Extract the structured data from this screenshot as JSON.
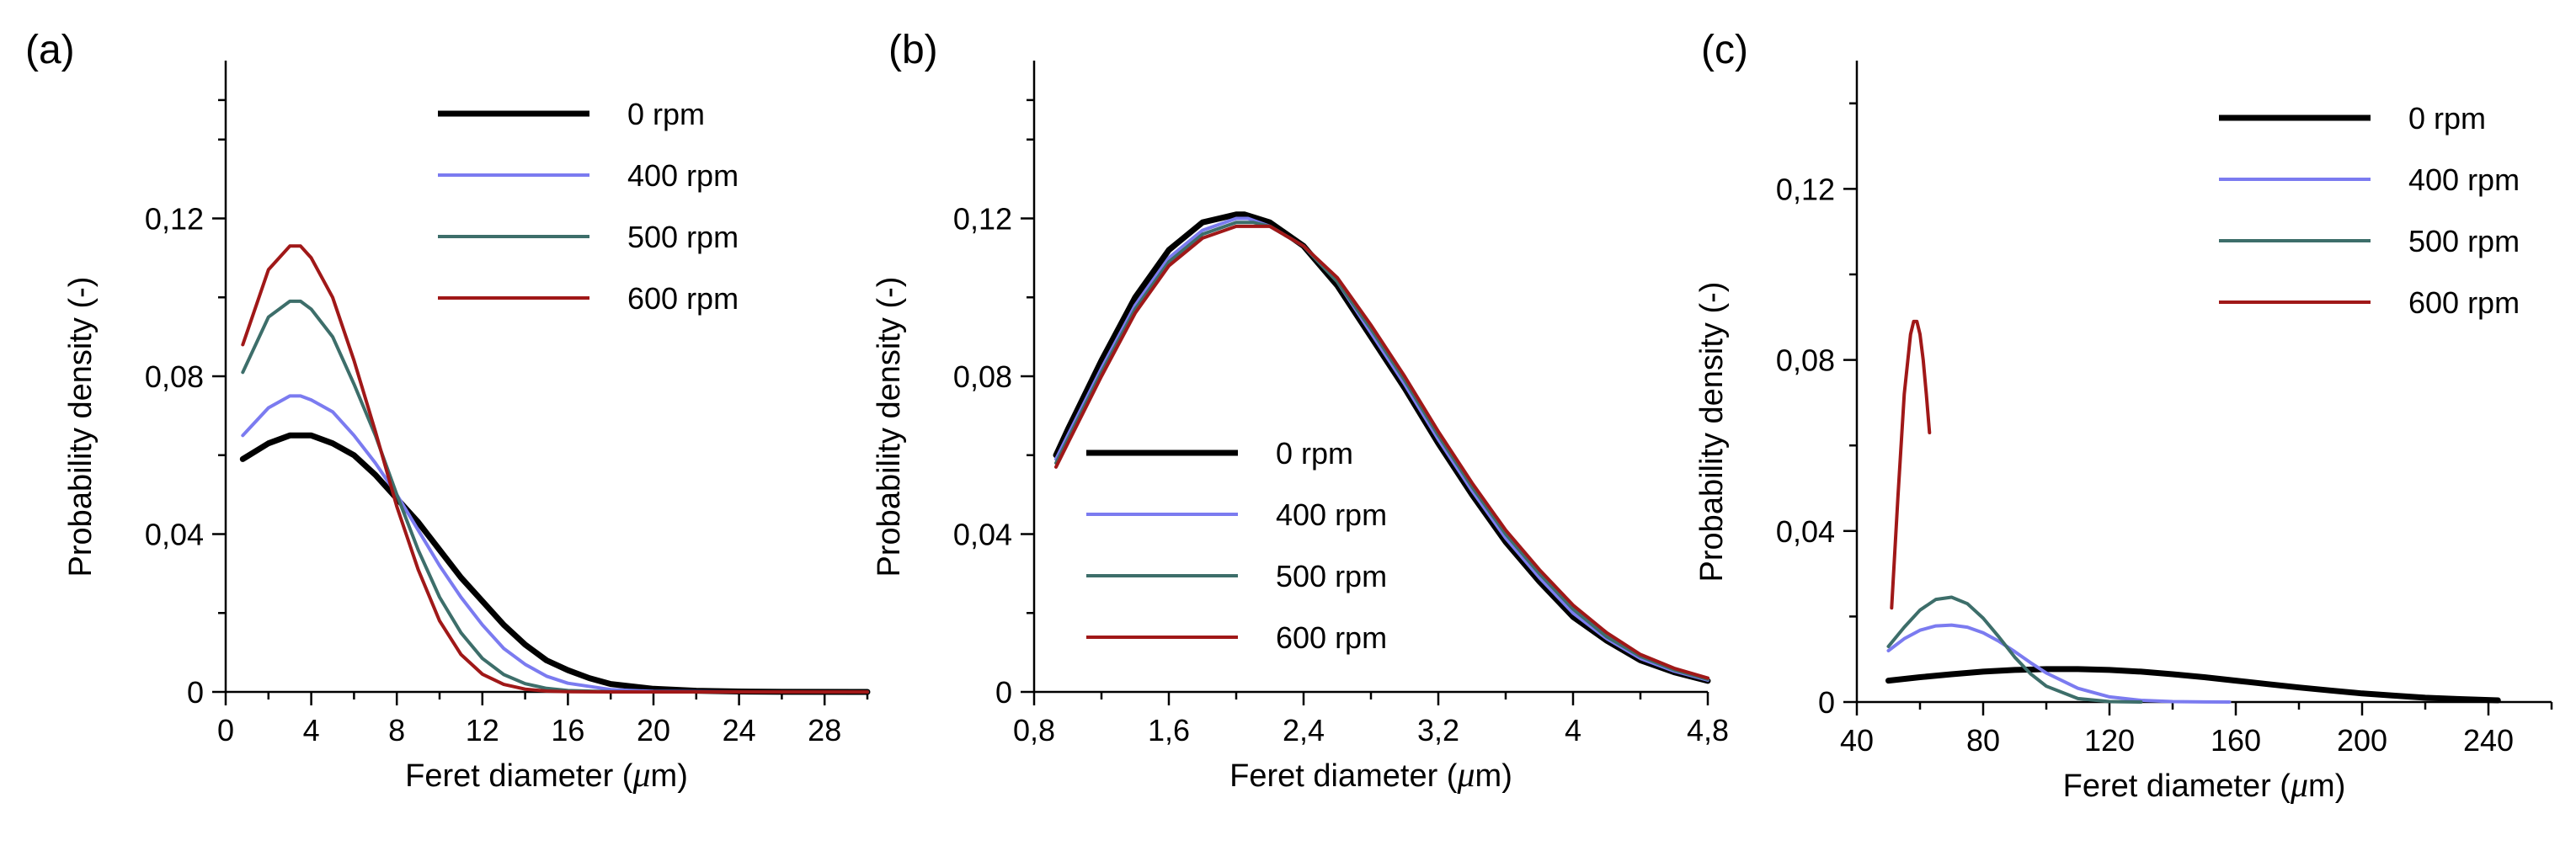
{
  "chart_data": [
    {
      "type": "line",
      "panel_label": "(a)",
      "xlabel_main": "Feret diameter (",
      "xlabel_mu": "μ",
      "xlabel_unit": "m)",
      "ylabel": "Probability density (-)",
      "xlim": [
        0,
        30
      ],
      "ylim": [
        0,
        0.16
      ],
      "xticks": [
        0,
        4,
        8,
        12,
        16,
        20,
        24,
        28
      ],
      "xtick_labels": [
        "0",
        "4",
        "8",
        "12",
        "16",
        "20",
        "24",
        "28"
      ],
      "yticks": [
        0,
        0.04,
        0.08,
        0.12
      ],
      "ytick_labels": [
        "0",
        "0,04",
        "0,08",
        "0,12"
      ],
      "legend_position": "top-right",
      "series": [
        {
          "name": "0 rpm",
          "color": "#000000",
          "width": 7,
          "x": [
            0.8,
            2,
            3,
            3.5,
            4,
            5,
            6,
            7,
            8,
            9,
            10,
            11,
            12,
            13,
            14,
            15,
            16,
            17,
            18,
            20,
            22,
            24,
            26,
            30
          ],
          "y": [
            0.059,
            0.063,
            0.065,
            0.065,
            0.065,
            0.063,
            0.06,
            0.055,
            0.049,
            0.043,
            0.036,
            0.029,
            0.023,
            0.017,
            0.012,
            0.008,
            0.0055,
            0.0035,
            0.002,
            0.0008,
            0.0003,
            0.0001,
            3e-05,
            0
          ]
        },
        {
          "name": "400 rpm",
          "color": "#7b7bf0",
          "width": 4,
          "x": [
            0.8,
            2,
            3,
            3.5,
            4,
            5,
            6,
            7,
            8,
            9,
            10,
            11,
            12,
            13,
            14,
            15,
            16,
            18,
            20,
            24,
            30
          ],
          "y": [
            0.065,
            0.072,
            0.075,
            0.075,
            0.074,
            0.071,
            0.065,
            0.058,
            0.05,
            0.041,
            0.032,
            0.024,
            0.017,
            0.011,
            0.007,
            0.004,
            0.0022,
            0.0006,
            0.00012,
            0,
            0
          ]
        },
        {
          "name": "500 rpm",
          "color": "#3d6e6a",
          "width": 4,
          "x": [
            0.8,
            2,
            3,
            3.5,
            4,
            5,
            6,
            7,
            8,
            9,
            10,
            11,
            12,
            13,
            14,
            15,
            16,
            18,
            20,
            30
          ],
          "y": [
            0.081,
            0.095,
            0.099,
            0.099,
            0.097,
            0.09,
            0.078,
            0.065,
            0.05,
            0.036,
            0.024,
            0.015,
            0.0085,
            0.0044,
            0.0021,
            0.0009,
            0.00035,
            4e-05,
            0,
            0
          ]
        },
        {
          "name": "600 rpm",
          "color": "#a01818",
          "width": 4,
          "x": [
            0.8,
            2,
            3,
            3.5,
            4,
            5,
            6,
            7,
            8,
            9,
            10,
            11,
            12,
            13,
            14,
            15,
            16,
            18,
            30
          ],
          "y": [
            0.088,
            0.107,
            0.113,
            0.113,
            0.11,
            0.1,
            0.084,
            0.066,
            0.047,
            0.031,
            0.018,
            0.0095,
            0.0045,
            0.0019,
            0.0007,
            0.00022,
            6e-05,
            0,
            0
          ]
        }
      ]
    },
    {
      "type": "line",
      "panel_label": "(b)",
      "xlabel_main": "Feret diameter (",
      "xlabel_mu": "μ",
      "xlabel_unit": "m)",
      "ylabel": "Probability density (-)",
      "xlim": [
        0.8,
        4.8
      ],
      "ylim": [
        0,
        0.16
      ],
      "xticks": [
        0.8,
        1.6,
        2.4,
        3.2,
        4,
        4.8
      ],
      "xtick_labels": [
        "0,8",
        "1,6",
        "2,4",
        "3,2",
        "4",
        "4,8"
      ],
      "yticks": [
        0,
        0.04,
        0.08,
        0.12
      ],
      "ytick_labels": [
        "0",
        "0,04",
        "0,08",
        "0,12"
      ],
      "legend_position": "bottom-left",
      "series": [
        {
          "name": "0 rpm",
          "color": "#000000",
          "width": 7,
          "x": [
            0.93,
            1.0,
            1.2,
            1.4,
            1.6,
            1.8,
            2.0,
            2.05,
            2.2,
            2.4,
            2.6,
            2.8,
            3.0,
            3.2,
            3.4,
            3.6,
            3.8,
            4.0,
            4.2,
            4.4,
            4.6,
            4.8
          ],
          "y": [
            0.06,
            0.0665,
            0.084,
            0.1,
            0.112,
            0.119,
            0.121,
            0.121,
            0.119,
            0.113,
            0.103,
            0.09,
            0.077,
            0.063,
            0.05,
            0.038,
            0.028,
            0.019,
            0.013,
            0.008,
            0.005,
            0.0028
          ]
        },
        {
          "name": "400 rpm",
          "color": "#7b7bf0",
          "width": 4,
          "x": [
            0.93,
            1.0,
            1.2,
            1.4,
            1.6,
            1.8,
            2.0,
            2.07,
            2.2,
            2.4,
            2.6,
            2.8,
            3.0,
            3.2,
            3.4,
            3.6,
            3.8,
            4.0,
            4.2,
            4.4,
            4.6,
            4.8
          ],
          "y": [
            0.059,
            0.065,
            0.082,
            0.098,
            0.11,
            0.117,
            0.12,
            0.12,
            0.118,
            0.113,
            0.104,
            0.091,
            0.078,
            0.064,
            0.051,
            0.039,
            0.029,
            0.02,
            0.0135,
            0.0085,
            0.0053,
            0.003
          ]
        },
        {
          "name": "500 rpm",
          "color": "#3d6e6a",
          "width": 4,
          "x": [
            0.93,
            1.0,
            1.2,
            1.4,
            1.6,
            1.8,
            2.0,
            2.1,
            2.2,
            2.4,
            2.6,
            2.8,
            3.0,
            3.2,
            3.4,
            3.6,
            3.8,
            4.0,
            4.2,
            4.4,
            4.6,
            4.8
          ],
          "y": [
            0.058,
            0.064,
            0.081,
            0.097,
            0.109,
            0.116,
            0.119,
            0.119,
            0.118,
            0.113,
            0.104,
            0.092,
            0.079,
            0.065,
            0.052,
            0.04,
            0.03,
            0.021,
            0.014,
            0.009,
            0.0056,
            0.0032
          ]
        },
        {
          "name": "600 rpm",
          "color": "#a01818",
          "width": 4,
          "x": [
            0.93,
            1.0,
            1.2,
            1.4,
            1.6,
            1.8,
            2.0,
            2.12,
            2.2,
            2.4,
            2.6,
            2.8,
            3.0,
            3.2,
            3.4,
            3.6,
            3.8,
            4.0,
            4.2,
            4.4,
            4.6,
            4.8
          ],
          "y": [
            0.057,
            0.063,
            0.08,
            0.096,
            0.108,
            0.115,
            0.118,
            0.118,
            0.118,
            0.113,
            0.105,
            0.093,
            0.08,
            0.066,
            0.053,
            0.041,
            0.031,
            0.022,
            0.015,
            0.0095,
            0.006,
            0.0035
          ]
        }
      ]
    },
    {
      "type": "line",
      "panel_label": "(c)",
      "xlabel_main": "Feret diameter (",
      "xlabel_mu": "μ",
      "xlabel_unit": "m)",
      "ylabel": "Probability density (-)",
      "xlim": [
        40,
        260
      ],
      "ylim": [
        0,
        0.15
      ],
      "xticks": [
        40,
        80,
        120,
        160,
        200,
        240
      ],
      "xtick_labels": [
        "40",
        "80",
        "120",
        "160",
        "200",
        "240"
      ],
      "yticks": [
        0,
        0.04,
        0.08,
        0.12
      ],
      "ytick_labels": [
        "0",
        "0,04",
        "0,08",
        "0,12"
      ],
      "legend_position": "top-right",
      "series": [
        {
          "name": "0 rpm",
          "color": "#000000",
          "width": 7,
          "x": [
            50,
            60,
            70,
            80,
            90,
            100,
            110,
            120,
            130,
            140,
            150,
            160,
            170,
            180,
            190,
            200,
            210,
            220,
            230,
            243
          ],
          "y": [
            0.005,
            0.0058,
            0.0065,
            0.0071,
            0.0075,
            0.0077,
            0.0077,
            0.0075,
            0.0071,
            0.0065,
            0.0058,
            0.005,
            0.0042,
            0.0034,
            0.0027,
            0.002,
            0.0015,
            0.001,
            0.0007,
            0.0004
          ]
        },
        {
          "name": "400 rpm",
          "color": "#7b7bf0",
          "width": 4,
          "x": [
            50,
            55,
            60,
            65,
            70,
            75,
            80,
            85,
            90,
            95,
            100,
            110,
            120,
            130,
            140,
            150,
            158
          ],
          "y": [
            0.012,
            0.0148,
            0.0168,
            0.0178,
            0.018,
            0.0175,
            0.0162,
            0.0142,
            0.0118,
            0.0092,
            0.0068,
            0.0032,
            0.0012,
            0.0004,
            0.0001,
            2e-05,
            0
          ]
        },
        {
          "name": "500 rpm",
          "color": "#3d6e6a",
          "width": 4,
          "x": [
            50,
            55,
            60,
            65,
            70,
            75,
            80,
            85,
            90,
            95,
            100,
            110,
            120,
            130
          ],
          "y": [
            0.013,
            0.0175,
            0.0215,
            0.024,
            0.0245,
            0.023,
            0.0196,
            0.0152,
            0.0105,
            0.0066,
            0.0037,
            0.0008,
            0.0001,
            0
          ]
        },
        {
          "name": "600 rpm",
          "color": "#a01818",
          "width": 4,
          "x": [
            51,
            53,
            55,
            57,
            58,
            59,
            60,
            61,
            62,
            63
          ],
          "y": [
            0.022,
            0.048,
            0.072,
            0.086,
            0.089,
            0.089,
            0.086,
            0.08,
            0.072,
            0.063
          ]
        }
      ]
    }
  ]
}
